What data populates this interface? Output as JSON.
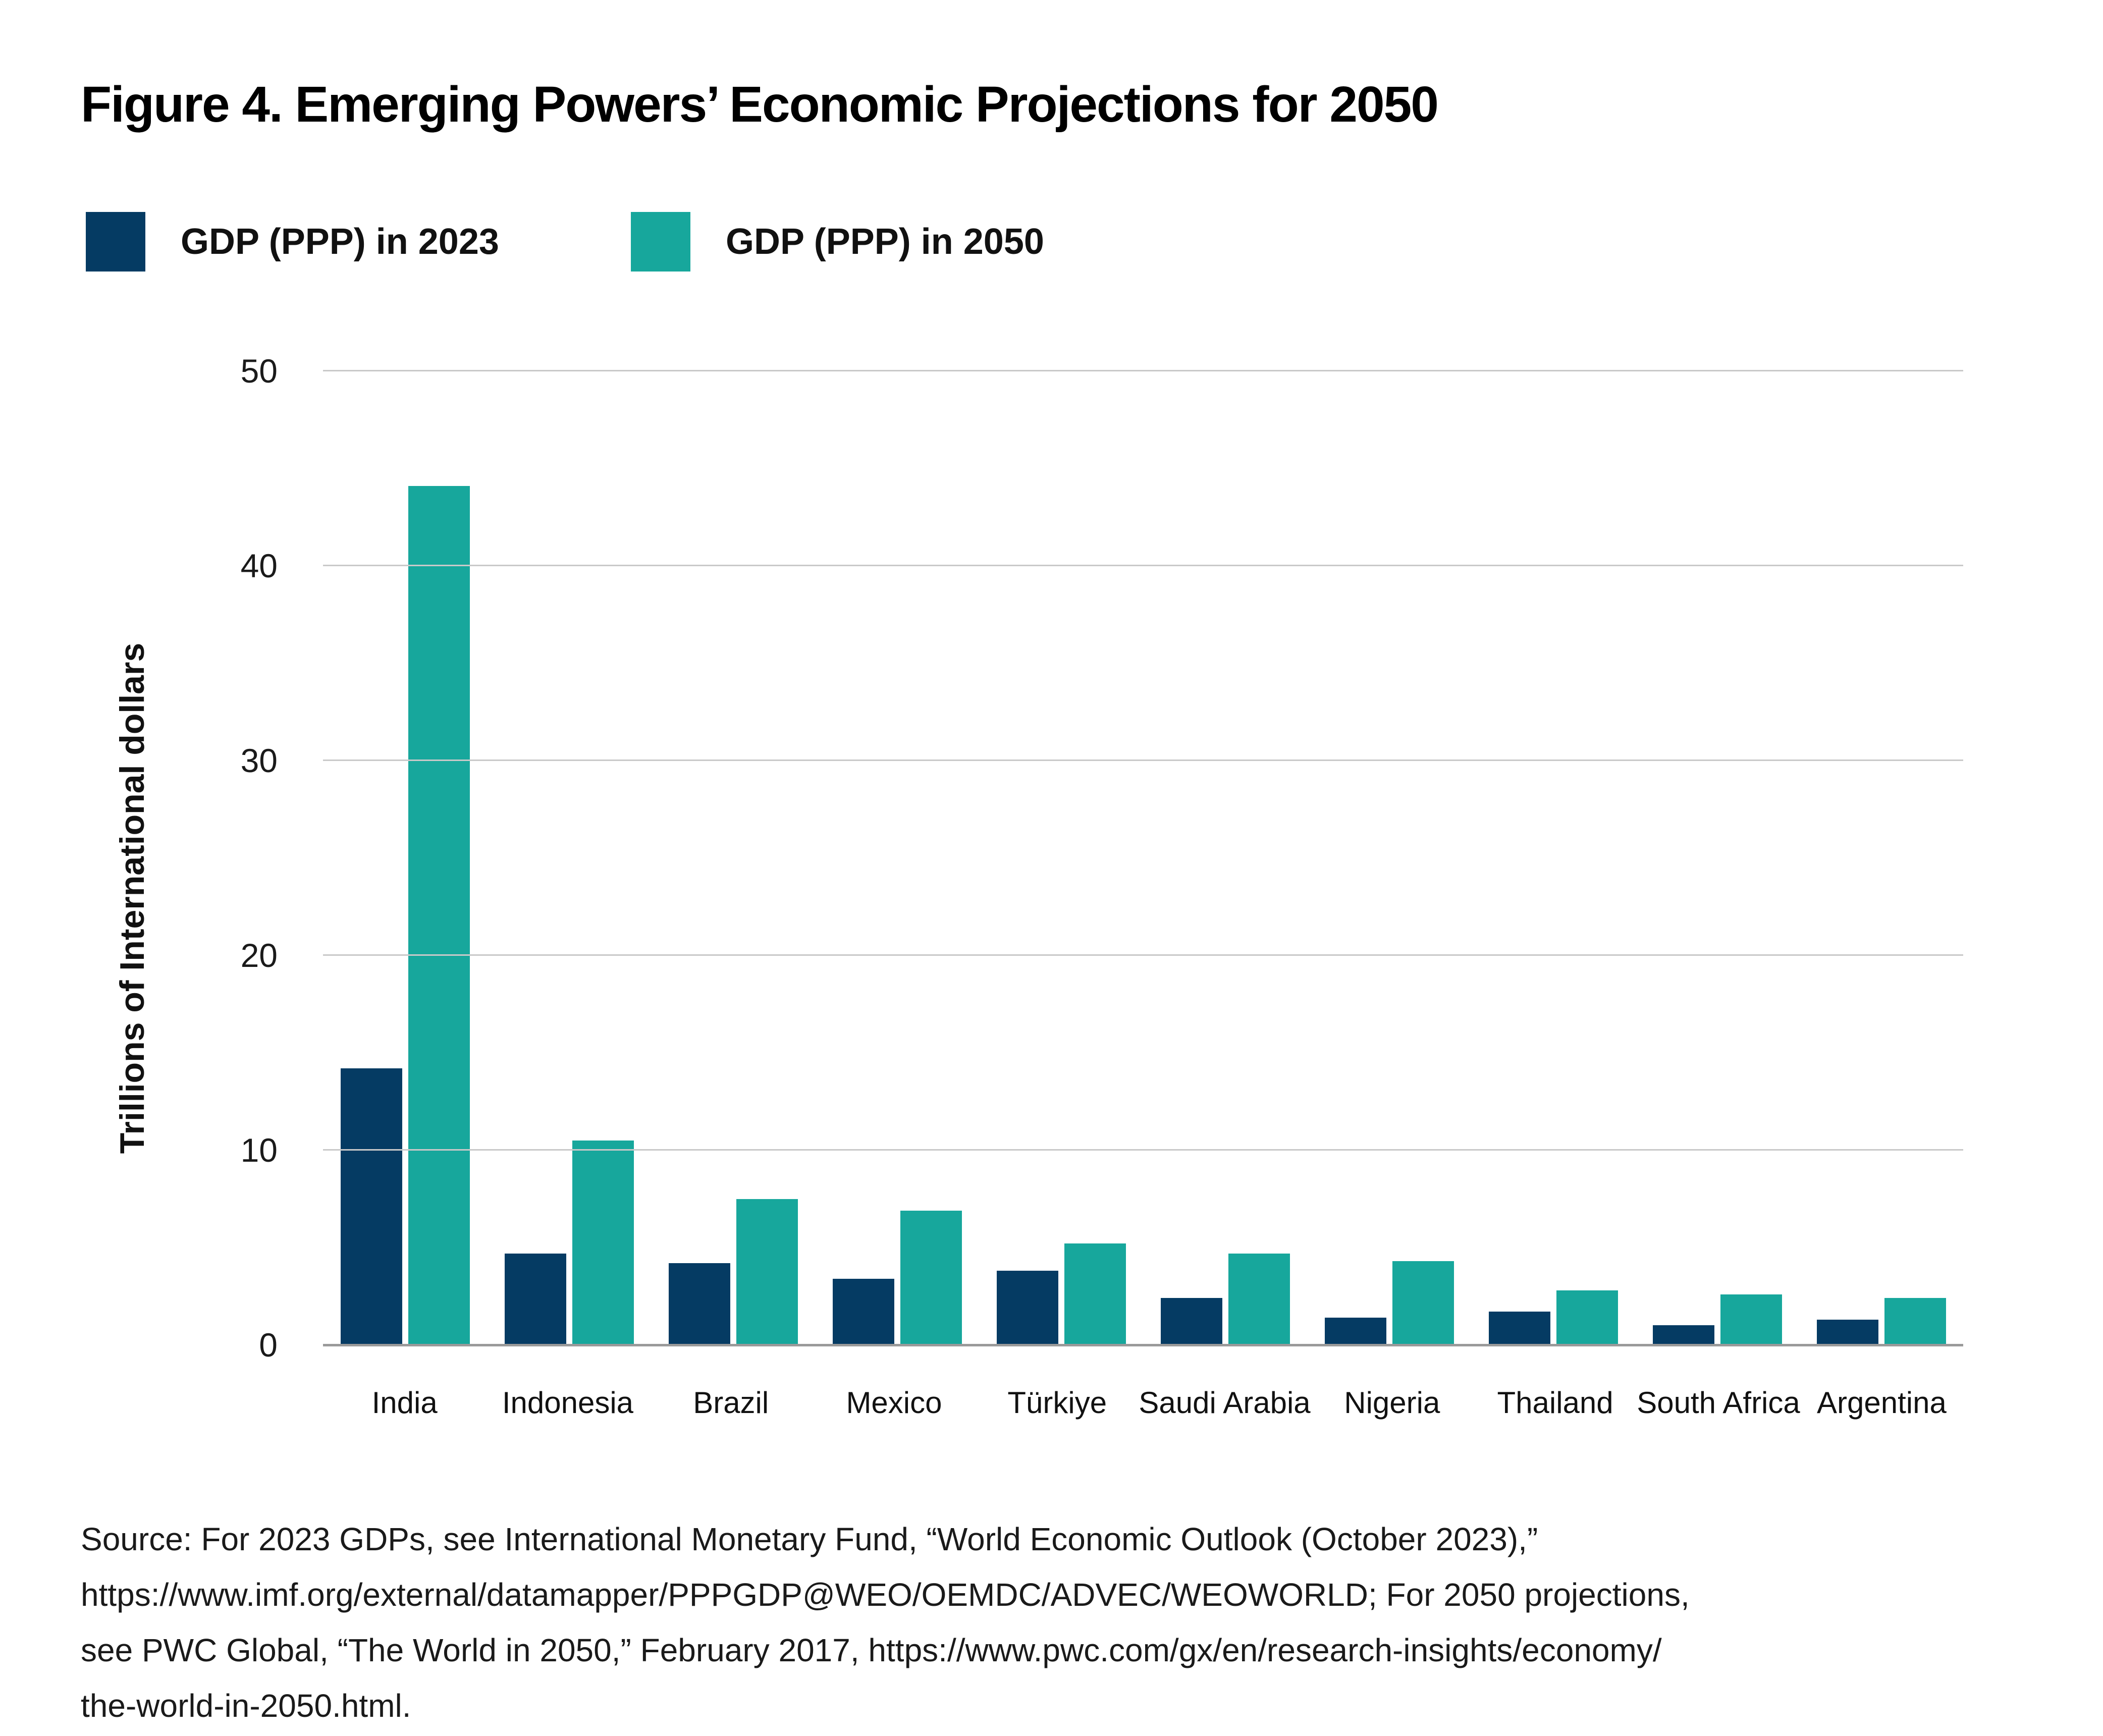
{
  "title": "Figure 4. Emerging Powers’ Economic Projections for 2050",
  "legend": {
    "items": [
      {
        "label": "GDP (PPP) in 2023",
        "color": "#053b63"
      },
      {
        "label": "GDP (PPP) in 2050",
        "color": "#17a79c"
      }
    ]
  },
  "chart_data": {
    "type": "bar",
    "grouped": true,
    "categories": [
      "India",
      "Indonesia",
      "Brazil",
      "Mexico",
      "Türkiye",
      "Saudi Arabia",
      "Nigeria",
      "Thailand",
      "South Africa",
      "Argentina"
    ],
    "series": [
      {
        "name": "GDP (PPP) in 2023",
        "color": "#053b63",
        "values": [
          14.2,
          4.7,
          4.2,
          3.4,
          3.8,
          2.4,
          1.4,
          1.7,
          1.0,
          1.3
        ]
      },
      {
        "name": "GDP (PPP) in 2050",
        "color": "#17a79c",
        "values": [
          44.1,
          10.5,
          7.5,
          6.9,
          5.2,
          4.7,
          4.3,
          2.8,
          2.6,
          2.4
        ]
      }
    ],
    "title": "Figure 4. Emerging Powers’ Economic Projections for 2050",
    "xlabel": "",
    "ylabel": "Trillions of International dollars",
    "ylim": [
      0,
      50
    ],
    "yticks": [
      50,
      40,
      30,
      20,
      10,
      0
    ],
    "grid": "horizontal",
    "legend_position": "top-left"
  },
  "source": {
    "lines": [
      "Source: For 2023 GDPs, see International Monetary Fund, “World Economic Outlook (October 2023),”",
      "https://www.imf.org/external/datamapper/PPPGDP@WEO/OEMDC/ADVEC/WEOWORLD; For 2050 projections,",
      "see PWC Global, “The World in 2050,” February 2017, https://www.pwc.com/gx/en/research-insights/economy/",
      "the-world-in-2050.html."
    ]
  },
  "colors": {
    "gridline": "#c9c9c9",
    "baseline": "#9a9a9a",
    "text": "#111111"
  }
}
